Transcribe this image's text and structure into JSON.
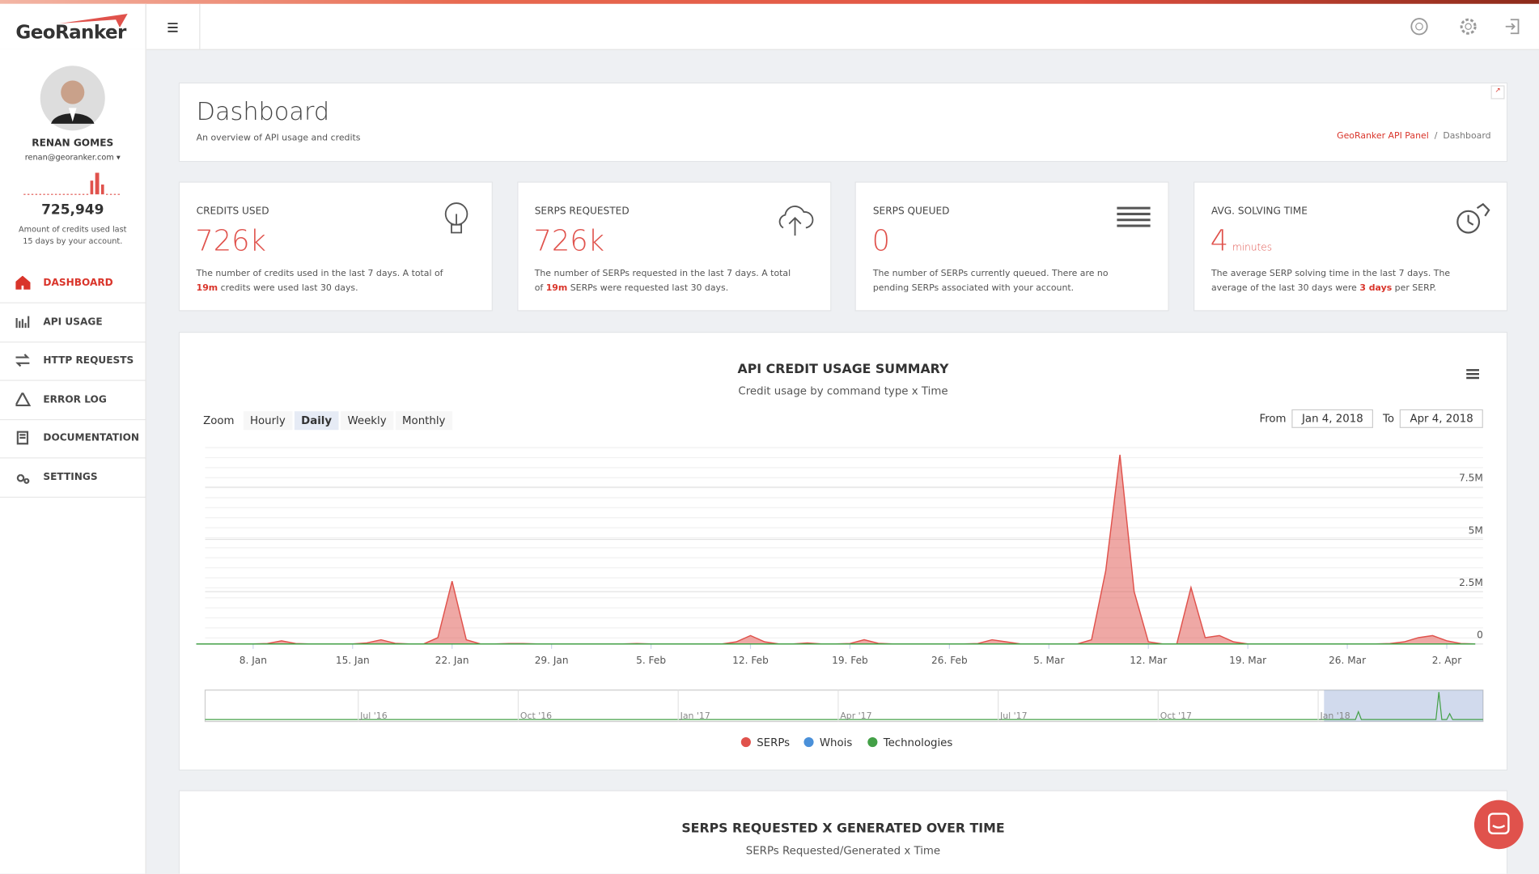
{
  "brand": "GeoRanker",
  "user": {
    "name": "RENAN GOMES",
    "email": "renan@georanker.com",
    "credits": "725,949",
    "credits_note": "Amount of credits used last 15 days by your account."
  },
  "nav": [
    "DASHBOARD",
    "API USAGE",
    "HTTP REQUESTS",
    "ERROR LOG",
    "DOCUMENTATION",
    "SETTINGS"
  ],
  "header": {
    "title": "Dashboard",
    "subtitle": "An overview of API usage and credits",
    "breadcrumb": [
      "GeoRanker API Panel",
      "Dashboard"
    ]
  },
  "cards": [
    {
      "label": "CREDITS USED",
      "value": "726k",
      "before": "The number of credits used in the last 7 days. A total of ",
      "highlight": "19m",
      "after": " credits were used last 30 days."
    },
    {
      "label": "SERPS REQUESTED",
      "value": "726k",
      "before": "The number of SERPs requested in the last 7 days. A total of ",
      "highlight": "19m",
      "after": " SERPs were requested last 30 days."
    },
    {
      "label": "SERPS QUEUED",
      "value": "0",
      "before": "The number of SERPs currently queued. There are no pending SERPs associated with your account."
    },
    {
      "label": "AVG. SOLVING TIME",
      "value": "4",
      "unit": "minutes",
      "before": "The average SERP solving time in the last 7 days. The average of the last 30 days were ",
      "highlight": "3 days",
      "after": " per SERP."
    }
  ],
  "chart_data": {
    "type": "area",
    "title": "API CREDIT USAGE SUMMARY",
    "subtitle": "Credit usage by command type x Time",
    "zoom_label": "Zoom",
    "zoom": [
      "Hourly",
      "Daily",
      "Weekly",
      "Monthly"
    ],
    "from_label": "From",
    "from": "Jan 4, 2018",
    "to_label": "To",
    "to": "Apr 4, 2018",
    "navigator_labels": [
      "Jul '16",
      "Oct '16",
      "Jan '17",
      "Apr '17",
      "Jul '17",
      "Oct '17",
      "Jan '18"
    ],
    "categories": [
      null,
      null,
      null,
      null,
      "8. Jan",
      null,
      null,
      null,
      null,
      null,
      null,
      "15. Jan",
      null,
      null,
      null,
      null,
      null,
      null,
      "22. Jan",
      null,
      null,
      null,
      null,
      null,
      null,
      "29. Jan",
      null,
      null,
      null,
      null,
      null,
      null,
      "5. Feb",
      null,
      null,
      null,
      null,
      null,
      null,
      "12. Feb",
      null,
      null,
      null,
      null,
      null,
      null,
      "19. Feb",
      null,
      null,
      null,
      null,
      null,
      null,
      "26. Feb",
      null,
      null,
      null,
      null,
      null,
      null,
      "5. Mar",
      null,
      null,
      null,
      null,
      null,
      null,
      "12. Mar",
      null,
      null,
      null,
      null,
      null,
      null,
      "19. Mar",
      null,
      null,
      null,
      null,
      null,
      null,
      "26. Mar",
      null,
      null,
      null,
      null,
      null,
      null,
      "2. Apr",
      null,
      null
    ],
    "ylim": [
      0,
      10000000
    ],
    "yticks": [
      0,
      {
        "value": 2500000,
        "label": "2.5M"
      },
      {
        "value": 5000000,
        "label": "5M"
      },
      {
        "value": 7500000,
        "label": "7.5M"
      }
    ],
    "series": [
      {
        "name": "SERPs",
        "color": "#e0524c",
        "values": [
          0,
          0,
          0,
          0,
          0,
          20000,
          150000,
          20000,
          0,
          0,
          0,
          0,
          50000,
          200000,
          30000,
          0,
          0,
          300000,
          3000000,
          200000,
          0,
          0,
          20000,
          20000,
          0,
          0,
          0,
          0,
          0,
          0,
          0,
          20000,
          0,
          0,
          0,
          0,
          0,
          0,
          100000,
          400000,
          100000,
          0,
          0,
          50000,
          0,
          0,
          20000,
          200000,
          30000,
          0,
          0,
          0,
          0,
          0,
          0,
          20000,
          200000,
          100000,
          0,
          0,
          0,
          0,
          0,
          200000,
          3500000,
          9050000,
          2500000,
          100000,
          0,
          0,
          2700000,
          300000,
          400000,
          100000,
          0,
          0,
          0,
          0,
          0,
          0,
          0,
          0,
          0,
          0,
          20000,
          100000,
          300000,
          400000,
          150000,
          20000,
          0
        ]
      },
      {
        "name": "Whois",
        "color": "#4a90d9",
        "values": [
          0,
          0,
          0,
          0,
          0,
          0,
          0,
          0,
          0,
          0,
          0,
          0,
          0,
          0,
          0,
          0,
          0,
          0,
          0,
          0,
          0,
          0,
          0,
          0,
          0,
          0,
          0,
          0,
          0,
          0,
          0,
          0,
          0,
          0,
          0,
          0,
          0,
          0,
          0,
          0,
          0,
          0,
          0,
          0,
          0,
          0,
          0,
          0,
          0,
          0,
          0,
          0,
          0,
          0,
          0,
          0,
          0,
          0,
          0,
          0,
          0,
          0,
          0,
          0,
          0,
          0,
          0,
          0,
          0,
          0,
          0,
          0,
          0,
          0,
          0,
          0,
          0,
          0,
          0,
          0,
          0,
          0,
          0,
          0,
          0,
          0,
          0,
          0,
          0,
          0,
          0
        ]
      },
      {
        "name": "Technologies",
        "color": "#43a047",
        "values": [
          0,
          0,
          0,
          0,
          0,
          0,
          0,
          0,
          0,
          0,
          0,
          0,
          0,
          0,
          0,
          0,
          0,
          0,
          0,
          0,
          0,
          0,
          0,
          0,
          0,
          0,
          0,
          0,
          0,
          0,
          0,
          0,
          0,
          0,
          0,
          0,
          0,
          0,
          0,
          0,
          0,
          0,
          0,
          0,
          0,
          0,
          0,
          0,
          0,
          0,
          0,
          0,
          0,
          0,
          0,
          0,
          0,
          0,
          0,
          0,
          0,
          0,
          0,
          0,
          0,
          0,
          0,
          0,
          0,
          0,
          0,
          0,
          0,
          0,
          0,
          0,
          0,
          0,
          0,
          0,
          0,
          0,
          0,
          0,
          0,
          0,
          0,
          0,
          0,
          0,
          0
        ]
      }
    ]
  },
  "chart2": {
    "title": "SERPS REQUESTED X GENERATED OVER TIME",
    "subtitle": "SERPs Requested/Generated x Time"
  }
}
